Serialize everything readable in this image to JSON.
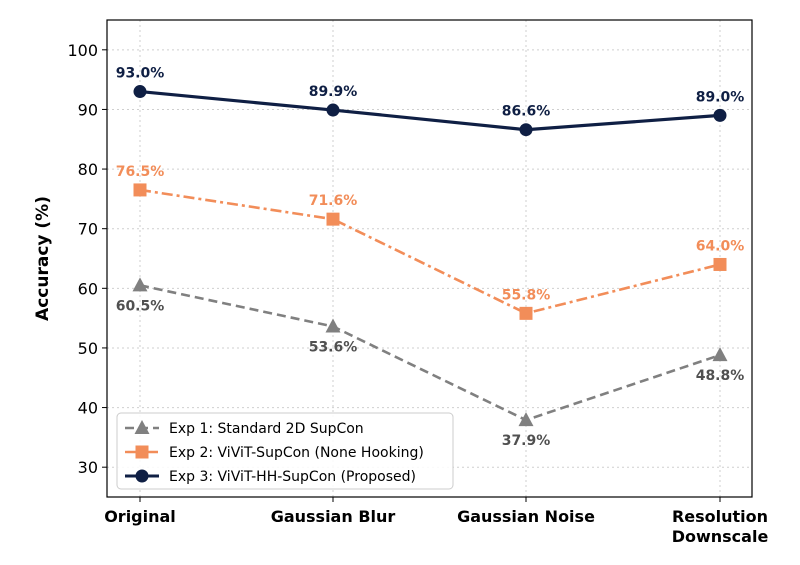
{
  "chart_data": {
    "type": "line",
    "title": "",
    "xlabel": "",
    "ylabel": "Accuracy (%)",
    "categories": [
      "Original",
      "Gaussian Blur",
      "Gaussian Noise",
      "Resolution\nDownscale"
    ],
    "ylim": [
      25,
      105
    ],
    "yticks": [
      30,
      40,
      50,
      60,
      70,
      80,
      90,
      100
    ],
    "grid": true,
    "legend_position": "lower-left",
    "series": [
      {
        "name": "Exp 1: Standard 2D SupCon",
        "values": [
          60.5,
          53.6,
          37.9,
          48.8
        ],
        "labels": [
          "60.5%",
          "53.6%",
          "37.9%",
          "48.8%"
        ],
        "color": "#808080",
        "marker": "triangle",
        "linestyle": "dashed"
      },
      {
        "name": "Exp 2: ViViT-SupCon (None Hooking)",
        "values": [
          76.5,
          71.6,
          55.8,
          64.0
        ],
        "labels": [
          "76.5%",
          "71.6%",
          "55.8%",
          "64.0%"
        ],
        "color": "#F28D59",
        "marker": "square",
        "linestyle": "dashdot"
      },
      {
        "name": "Exp 3: ViViT-HH-SupCon (Proposed)",
        "values": [
          93.0,
          89.9,
          86.6,
          89.0
        ],
        "labels": [
          "93.0%",
          "89.9%",
          "86.6%",
          "89.0%"
        ],
        "color": "#0F1F44",
        "marker": "circle",
        "linestyle": "solid"
      }
    ]
  }
}
